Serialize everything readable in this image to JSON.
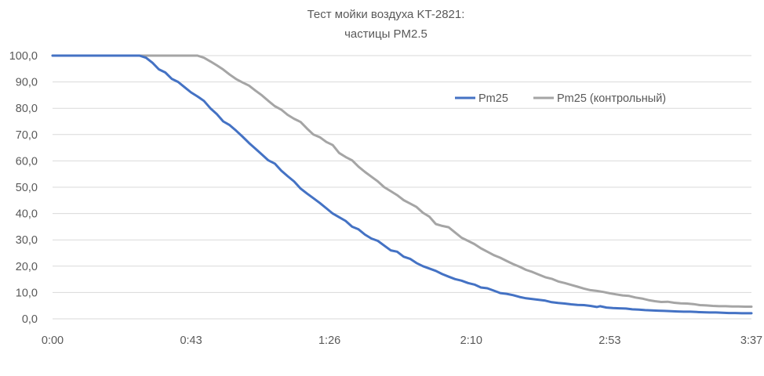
{
  "chart_data": {
    "type": "line",
    "title_lines": [
      "Тест мойки воздуха KT-2821:",
      "частицы PM2.5"
    ],
    "xlabel": "",
    "ylabel": "",
    "x_tick_labels": [
      "0:00",
      "0:43",
      "1:26",
      "2:10",
      "2:53",
      "3:37"
    ],
    "x_tick_seconds": [
      0,
      43,
      86,
      130,
      173,
      217
    ],
    "xlim_seconds": [
      0,
      217
    ],
    "y_tick_labels": [
      "0,0",
      "10,0",
      "20,0",
      "30,0",
      "40,0",
      "50,0",
      "60,0",
      "70,0",
      "80,0",
      "90,0",
      "100,0"
    ],
    "ylim": [
      0,
      100
    ],
    "grid": true,
    "legend_position": "top-right",
    "series": [
      {
        "name": "Pm25",
        "color": "#4472c4",
        "points": [
          [
            0,
            100
          ],
          [
            27,
            100
          ],
          [
            29,
            99.2
          ],
          [
            31,
            97.3
          ],
          [
            33,
            94.8
          ],
          [
            35,
            93.6
          ],
          [
            37,
            91.2
          ],
          [
            39,
            90
          ],
          [
            41,
            88
          ],
          [
            43,
            86
          ],
          [
            45,
            84.5
          ],
          [
            47,
            82.8
          ],
          [
            49,
            80
          ],
          [
            51,
            77.8
          ],
          [
            53,
            75
          ],
          [
            55,
            73.6
          ],
          [
            57,
            71.5
          ],
          [
            59,
            69.2
          ],
          [
            61,
            66.8
          ],
          [
            63,
            64.6
          ],
          [
            65,
            62.4
          ],
          [
            67,
            60.2
          ],
          [
            69,
            59
          ],
          [
            71,
            56.3
          ],
          [
            73,
            54.2
          ],
          [
            75,
            52.2
          ],
          [
            77,
            49.5
          ],
          [
            79,
            47.6
          ],
          [
            81,
            45.8
          ],
          [
            83,
            44
          ],
          [
            85,
            42
          ],
          [
            87,
            40
          ],
          [
            89,
            38.6
          ],
          [
            91,
            37.2
          ],
          [
            93,
            35
          ],
          [
            95,
            34
          ],
          [
            97,
            32
          ],
          [
            99,
            30.5
          ],
          [
            101,
            29.6
          ],
          [
            103,
            27.8
          ],
          [
            105,
            26
          ],
          [
            107,
            25.5
          ],
          [
            109,
            23.6
          ],
          [
            111,
            22.8
          ],
          [
            113,
            21.2
          ],
          [
            115,
            20
          ],
          [
            117,
            19.1
          ],
          [
            119,
            18.2
          ],
          [
            121,
            17
          ],
          [
            123,
            16
          ],
          [
            125,
            15.1
          ],
          [
            127,
            14.5
          ],
          [
            129,
            13.6
          ],
          [
            131,
            13
          ],
          [
            133,
            11.9
          ],
          [
            135,
            11.6
          ],
          [
            137,
            10.7
          ],
          [
            139,
            9.8
          ],
          [
            141,
            9.5
          ],
          [
            143,
            9
          ],
          [
            145,
            8.3
          ],
          [
            147,
            7.8
          ],
          [
            149,
            7.5
          ],
          [
            151,
            7.2
          ],
          [
            153,
            6.9
          ],
          [
            155,
            6.3
          ],
          [
            157,
            6
          ],
          [
            159,
            5.8
          ],
          [
            161,
            5.5
          ],
          [
            163,
            5.3
          ],
          [
            165,
            5.2
          ],
          [
            167,
            4.9
          ],
          [
            169,
            4.5
          ],
          [
            170,
            4.8
          ],
          [
            172,
            4.3
          ],
          [
            174,
            4.1
          ],
          [
            176,
            4
          ],
          [
            178,
            3.9
          ],
          [
            180,
            3.6
          ],
          [
            182,
            3.5
          ],
          [
            184,
            3.3
          ],
          [
            186,
            3.2
          ],
          [
            188,
            3.1
          ],
          [
            190,
            3
          ],
          [
            192,
            2.9
          ],
          [
            194,
            2.8
          ],
          [
            196,
            2.7
          ],
          [
            198,
            2.7
          ],
          [
            200,
            2.6
          ],
          [
            202,
            2.5
          ],
          [
            204,
            2.4
          ],
          [
            206,
            2.4
          ],
          [
            208,
            2.3
          ],
          [
            210,
            2.2
          ],
          [
            212,
            2.2
          ],
          [
            214,
            2.1
          ],
          [
            217,
            2.1
          ]
        ]
      },
      {
        "name": "Pm25 (контрольный)",
        "color": "#a5a5a5",
        "points": [
          [
            0,
            100
          ],
          [
            45,
            100
          ],
          [
            47,
            99.2
          ],
          [
            49,
            97.8
          ],
          [
            51,
            96.3
          ],
          [
            53,
            94.7
          ],
          [
            55,
            92.8
          ],
          [
            57,
            91.1
          ],
          [
            59,
            89.8
          ],
          [
            61,
            88.6
          ],
          [
            63,
            86.7
          ],
          [
            65,
            84.9
          ],
          [
            67,
            82.8
          ],
          [
            69,
            80.8
          ],
          [
            71,
            79.5
          ],
          [
            73,
            77.5
          ],
          [
            75,
            76
          ],
          [
            77,
            74.8
          ],
          [
            79,
            72.3
          ],
          [
            81,
            70
          ],
          [
            83,
            69
          ],
          [
            85,
            67.2
          ],
          [
            87,
            66
          ],
          [
            89,
            63
          ],
          [
            91,
            61.5
          ],
          [
            93,
            60.2
          ],
          [
            95,
            57.8
          ],
          [
            97,
            55.8
          ],
          [
            99,
            54
          ],
          [
            101,
            52.2
          ],
          [
            103,
            50
          ],
          [
            105,
            48.5
          ],
          [
            107,
            47
          ],
          [
            109,
            45.1
          ],
          [
            111,
            43.8
          ],
          [
            113,
            42.5
          ],
          [
            115,
            40.3
          ],
          [
            117,
            38.8
          ],
          [
            119,
            36
          ],
          [
            121,
            35.3
          ],
          [
            123,
            34.8
          ],
          [
            125,
            32.8
          ],
          [
            127,
            30.8
          ],
          [
            129,
            29.6
          ],
          [
            131,
            28.4
          ],
          [
            133,
            26.8
          ],
          [
            135,
            25.5
          ],
          [
            137,
            24.2
          ],
          [
            139,
            23.2
          ],
          [
            141,
            22
          ],
          [
            143,
            20.8
          ],
          [
            145,
            19.8
          ],
          [
            147,
            18.6
          ],
          [
            149,
            17.8
          ],
          [
            151,
            16.8
          ],
          [
            153,
            15.8
          ],
          [
            155,
            15.2
          ],
          [
            157,
            14.2
          ],
          [
            159,
            13.6
          ],
          [
            161,
            12.9
          ],
          [
            163,
            12.2
          ],
          [
            165,
            11.5
          ],
          [
            167,
            10.9
          ],
          [
            169,
            10.6
          ],
          [
            171,
            10.2
          ],
          [
            173,
            9.7
          ],
          [
            175,
            9.3
          ],
          [
            177,
            8.9
          ],
          [
            179,
            8.7
          ],
          [
            181,
            8.1
          ],
          [
            183,
            7.7
          ],
          [
            185,
            7.1
          ],
          [
            187,
            6.7
          ],
          [
            189,
            6.4
          ],
          [
            191,
            6.5
          ],
          [
            193,
            6.1
          ],
          [
            195,
            5.9
          ],
          [
            197,
            5.8
          ],
          [
            199,
            5.6
          ],
          [
            201,
            5.2
          ],
          [
            203,
            5.1
          ],
          [
            205,
            4.9
          ],
          [
            207,
            4.8
          ],
          [
            209,
            4.8
          ],
          [
            211,
            4.7
          ],
          [
            213,
            4.7
          ],
          [
            215,
            4.6
          ],
          [
            217,
            4.6
          ]
        ]
      }
    ]
  }
}
